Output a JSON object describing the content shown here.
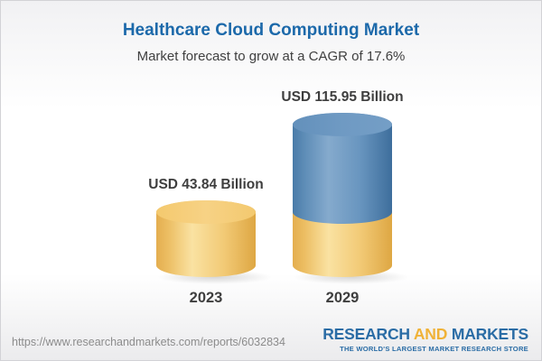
{
  "header": {
    "title": "Healthcare Cloud Computing Market",
    "subtitle": "Market forecast to grow at a CAGR of 17.6%"
  },
  "chart_data": {
    "type": "bar",
    "subtype": "3d-cylinder-stacked",
    "title": "Healthcare Cloud Computing Market",
    "subtitle": "Market forecast to grow at a CAGR of 17.6%",
    "unit": "USD Billion",
    "cagr_percent": 17.6,
    "categories": [
      "2023",
      "2029"
    ],
    "values": [
      43.84,
      115.95
    ],
    "value_labels": [
      "USD 43.84 Billion",
      "USD 115.95 Billion"
    ],
    "legend": "none",
    "grid": false,
    "bars": [
      {
        "category": "2023",
        "total": 43.84,
        "label": "USD 43.84 Billion",
        "segments": [
          {
            "value": 43.84,
            "palette": "gold"
          }
        ]
      },
      {
        "category": "2029",
        "total": 115.95,
        "label": "USD 115.95 Billion",
        "segments": [
          {
            "value": 43.84,
            "palette": "gold"
          },
          {
            "value": 72.11,
            "palette": "blue"
          }
        ]
      }
    ],
    "colors": {
      "gold": "#F2C467",
      "blue": "#5F8FBB",
      "label_text": "#3E3E3E",
      "title_text": "#1C69AA"
    }
  },
  "footer": {
    "url": "https://www.researchandmarkets.com/reports/6032834",
    "logo": {
      "word1": "RESEARCH",
      "word2": "AND",
      "word3": "MARKETS",
      "tagline": "THE WORLD'S LARGEST MARKET RESEARCH STORE",
      "blue": "#2A6CA5",
      "gold": "#F0B237"
    }
  }
}
